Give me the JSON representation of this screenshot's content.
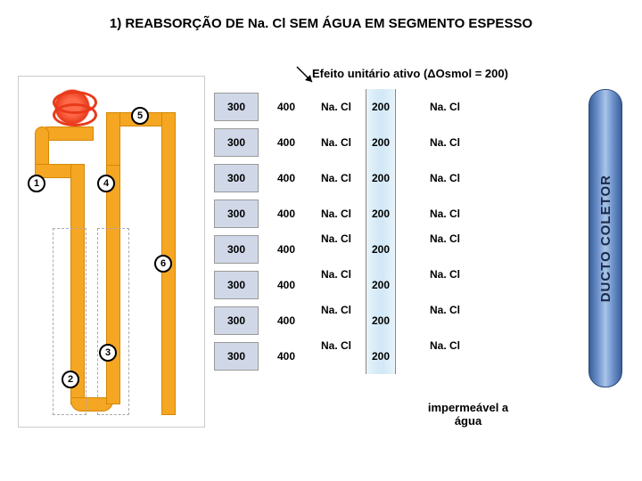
{
  "title": "1) REABSORÇÃO DE Na. Cl SEM ÁGUA EM SEGMENTO ESPESSO",
  "subtitle": "Efeito unitário ativo (ΔOsmol = 200)",
  "rows": [
    {
      "col1": "300",
      "col2": "400",
      "nacl_l": "Na. Cl",
      "thin": "200",
      "nacl_r": "Na. Cl"
    },
    {
      "col1": "300",
      "col2": "400",
      "nacl_l": "Na. Cl",
      "thin": "200",
      "nacl_r": "Na. Cl"
    },
    {
      "col1": "300",
      "col2": "400",
      "nacl_l": "Na. Cl",
      "thin": "200",
      "nacl_r": "Na. Cl"
    },
    {
      "col1": "300",
      "col2": "400",
      "nacl_l": "Na. Cl",
      "thin": "200",
      "nacl_r": "Na. Cl"
    },
    {
      "col1": "300",
      "col2": "400",
      "nacl_l": "Na. Cl",
      "thin": "200",
      "nacl_r": "Na. Cl"
    },
    {
      "col1": "300",
      "col2": "400",
      "nacl_l": "Na. Cl",
      "thin": "200",
      "nacl_r": "Na. Cl"
    },
    {
      "col1": "300",
      "col2": "400",
      "nacl_l": "Na. Cl",
      "thin": "200",
      "nacl_r": "Na. Cl"
    },
    {
      "col1": "300",
      "col2": "400",
      "nacl_l": "Na. Cl",
      "thin": "200",
      "nacl_r": "Na. Cl"
    }
  ],
  "ducto_label": "DUCTO COLETOR",
  "footer": "impermeável a água",
  "nephron_numbers": [
    "1",
    "2",
    "3",
    "4",
    "5",
    "6"
  ],
  "colors": {
    "cell300_bg": "#d0d8e8",
    "thin_bg": "#d4e9f7",
    "ducto_grad": "#3a5f9a",
    "tube": "#f5a623"
  }
}
